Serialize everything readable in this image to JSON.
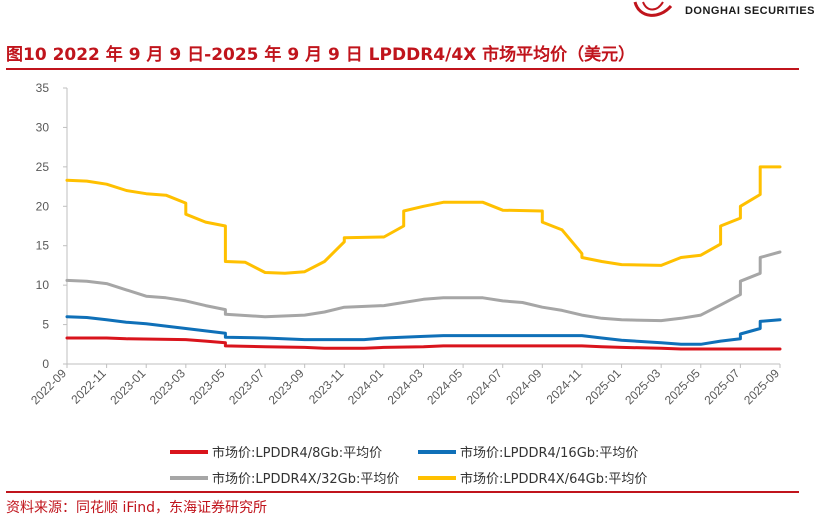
{
  "header": {
    "brand": "DONGHAI SECURITIES",
    "title": "图10  2022 年 9 月 9 日-2025 年 9 月 9 日 LPDDR4/4X 市场平均价（美元）"
  },
  "footer": {
    "source": "资料来源：同花顺 iFind，东海证券研究所"
  },
  "colors": {
    "accent": "#c0141c",
    "series": [
      "#d9141c",
      "#0f70b8",
      "#a6a6a6",
      "#ffc000"
    ]
  },
  "chart_data": {
    "type": "line",
    "ylim": [
      0,
      35
    ],
    "yticks": [
      0,
      5,
      10,
      15,
      20,
      25,
      30,
      35
    ],
    "x_ticks": [
      "2022-09",
      "2022-11",
      "2023-01",
      "2023-03",
      "2023-05",
      "2023-07",
      "2023-09",
      "2023-11",
      "2024-01",
      "2024-03",
      "2024-05",
      "2024-07",
      "2024-09",
      "2024-11",
      "2025-01",
      "2025-03",
      "2025-05",
      "2025-07",
      "2025-09"
    ],
    "x_start": "2022-09",
    "grid": false,
    "legend_position": "bottom",
    "series": [
      {
        "name": "市场价:LPDDR4/8Gb:平均价",
        "points": [
          [
            "2022-09",
            3.3
          ],
          [
            "2022-11",
            3.3
          ],
          [
            "2022-12",
            3.2
          ],
          [
            "2023-03",
            3.1
          ],
          [
            "2023-04",
            2.9
          ],
          [
            "2023-05",
            2.7
          ],
          [
            "2023-05",
            2.3
          ],
          [
            "2023-07",
            2.2
          ],
          [
            "2023-09",
            2.1
          ],
          [
            "2023-10",
            2.0
          ],
          [
            "2023-12",
            2.0
          ],
          [
            "2024-01",
            2.1
          ],
          [
            "2024-03",
            2.2
          ],
          [
            "2024-04",
            2.3
          ],
          [
            "2024-11",
            2.3
          ],
          [
            "2024-12",
            2.2
          ],
          [
            "2025-01",
            2.1
          ],
          [
            "2025-03",
            2.0
          ],
          [
            "2025-04",
            1.9
          ],
          [
            "2025-09",
            1.9
          ]
        ]
      },
      {
        "name": "市场价:LPDDR4/16Gb:平均价",
        "points": [
          [
            "2022-09",
            6.0
          ],
          [
            "2022-10",
            5.9
          ],
          [
            "2022-11",
            5.6
          ],
          [
            "2022-12",
            5.3
          ],
          [
            "2023-01",
            5.1
          ],
          [
            "2023-02",
            4.8
          ],
          [
            "2023-03",
            4.5
          ],
          [
            "2023-04",
            4.2
          ],
          [
            "2023-05",
            3.9
          ],
          [
            "2023-05",
            3.4
          ],
          [
            "2023-07",
            3.3
          ],
          [
            "2023-09",
            3.1
          ],
          [
            "2023-12",
            3.1
          ],
          [
            "2024-01",
            3.3
          ],
          [
            "2024-03",
            3.5
          ],
          [
            "2024-04",
            3.6
          ],
          [
            "2024-11",
            3.6
          ],
          [
            "2024-12",
            3.3
          ],
          [
            "2025-01",
            3.0
          ],
          [
            "2025-03",
            2.7
          ],
          [
            "2025-04",
            2.5
          ],
          [
            "2025-05",
            2.5
          ],
          [
            "2025-06",
            2.9
          ],
          [
            "2025-07",
            3.2
          ],
          [
            "2025-07",
            3.8
          ],
          [
            "2025-08",
            4.5
          ],
          [
            "2025-08",
            5.4
          ],
          [
            "2025-09",
            5.6
          ]
        ]
      },
      {
        "name": "市场价:LPDDR4X/32Gb:平均价",
        "points": [
          [
            "2022-09",
            10.6
          ],
          [
            "2022-10",
            10.5
          ],
          [
            "2022-11",
            10.2
          ],
          [
            "2022-12",
            9.4
          ],
          [
            "2023-01",
            8.6
          ],
          [
            "2023-02",
            8.4
          ],
          [
            "2023-03",
            8.0
          ],
          [
            "2023-04",
            7.4
          ],
          [
            "2023-05",
            6.9
          ],
          [
            "2023-05",
            6.3
          ],
          [
            "2023-07",
            6.0
          ],
          [
            "2023-09",
            6.2
          ],
          [
            "2023-10",
            6.6
          ],
          [
            "2023-11",
            7.2
          ],
          [
            "2024-01",
            7.4
          ],
          [
            "2024-03",
            8.2
          ],
          [
            "2024-04",
            8.4
          ],
          [
            "2024-06",
            8.4
          ],
          [
            "2024-07",
            8.0
          ],
          [
            "2024-08",
            7.8
          ],
          [
            "2024-09",
            7.2
          ],
          [
            "2024-10",
            6.8
          ],
          [
            "2024-11",
            6.2
          ],
          [
            "2024-12",
            5.8
          ],
          [
            "2025-01",
            5.6
          ],
          [
            "2025-03",
            5.5
          ],
          [
            "2025-04",
            5.8
          ],
          [
            "2025-05",
            6.2
          ],
          [
            "2025-06",
            7.5
          ],
          [
            "2025-07",
            8.8
          ],
          [
            "2025-07",
            10.5
          ],
          [
            "2025-08",
            11.5
          ],
          [
            "2025-08",
            13.5
          ],
          [
            "2025-09",
            14.2
          ]
        ]
      },
      {
        "name": "市场价:LPDDR4X/64Gb:平均价",
        "points": [
          [
            "2022-09",
            23.3
          ],
          [
            "2022-10",
            23.2
          ],
          [
            "2022-11",
            22.8
          ],
          [
            "2022-12",
            22.0
          ],
          [
            "2023-01",
            21.6
          ],
          [
            "2023-02",
            21.4
          ],
          [
            "2023-03",
            20.4
          ],
          [
            "2023-03",
            19.0
          ],
          [
            "2023-04",
            18.0
          ],
          [
            "2023-05",
            17.5
          ],
          [
            "2023-05",
            13.0
          ],
          [
            "2023-06",
            12.9
          ],
          [
            "2023-07",
            11.6
          ],
          [
            "2023-08",
            11.5
          ],
          [
            "2023-09",
            11.7
          ],
          [
            "2023-10",
            13.0
          ],
          [
            "2023-11",
            15.5
          ],
          [
            "2023-11",
            16.0
          ],
          [
            "2024-01",
            16.1
          ],
          [
            "2024-02",
            17.5
          ],
          [
            "2024-02",
            19.4
          ],
          [
            "2024-03",
            20.0
          ],
          [
            "2024-04",
            20.5
          ],
          [
            "2024-06",
            20.5
          ],
          [
            "2024-07",
            19.5
          ],
          [
            "2024-09",
            19.4
          ],
          [
            "2024-09",
            18.0
          ],
          [
            "2024-10",
            17.0
          ],
          [
            "2024-11",
            14.0
          ],
          [
            "2024-11",
            13.5
          ],
          [
            "2024-12",
            13.0
          ],
          [
            "2025-01",
            12.6
          ],
          [
            "2025-03",
            12.5
          ],
          [
            "2025-04",
            13.5
          ],
          [
            "2025-05",
            13.8
          ],
          [
            "2025-06",
            15.2
          ],
          [
            "2025-06",
            17.5
          ],
          [
            "2025-07",
            18.5
          ],
          [
            "2025-07",
            20.0
          ],
          [
            "2025-08",
            21.5
          ],
          [
            "2025-08",
            23.5
          ],
          [
            "2025-08",
            25.0
          ],
          [
            "2025-09",
            25.0
          ]
        ]
      }
    ]
  }
}
